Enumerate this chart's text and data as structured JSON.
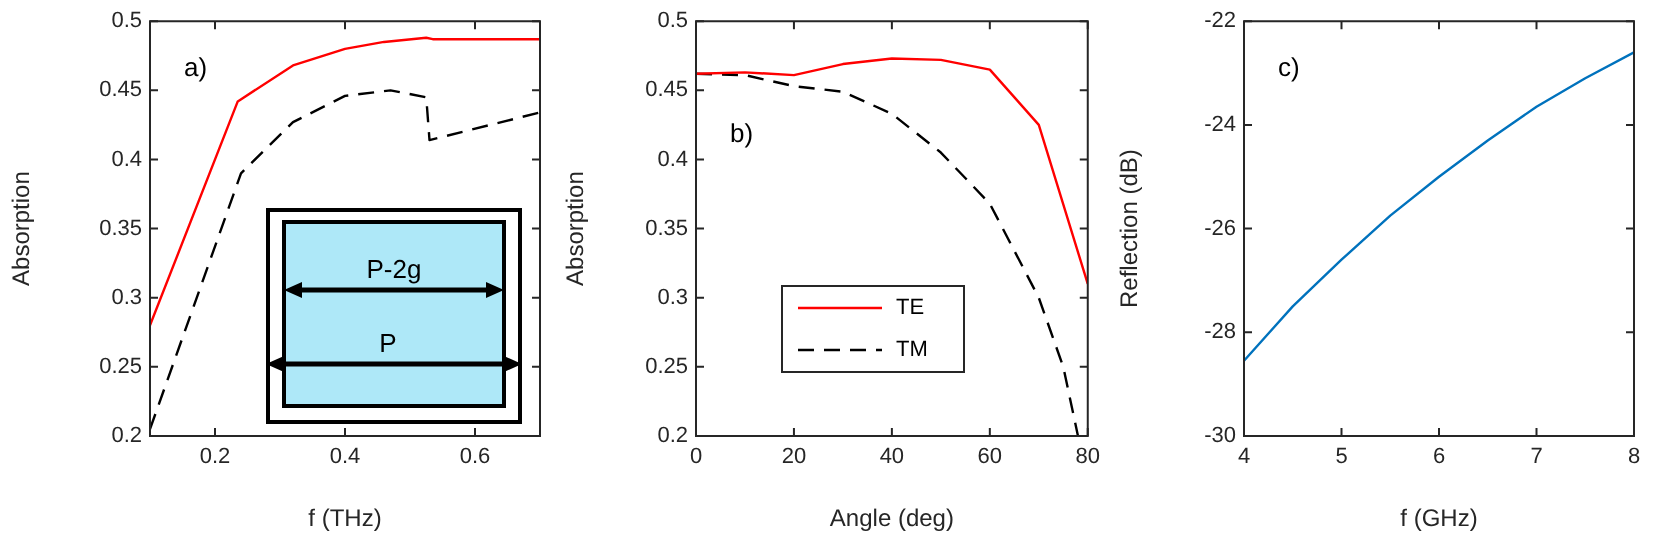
{
  "chart_data": [
    {
      "type": "line",
      "xlabel": "f (THz)",
      "ylabel": "Absorption",
      "annotations": [
        "a)",
        "P-2g",
        "P"
      ],
      "xlim": [
        0.1,
        0.7
      ],
      "xticks": [
        0.2,
        0.4,
        0.6
      ],
      "ylim": [
        0.2,
        0.5
      ],
      "yticks": [
        0.2,
        0.25,
        0.3,
        0.35,
        0.4,
        0.45,
        0.5
      ],
      "grid": false,
      "marker": "none",
      "series": [
        {
          "color": "#ff0000",
          "line_style": "solid",
          "x": [
            0.1,
            0.235,
            0.32,
            0.4,
            0.46,
            0.525,
            0.535,
            0.7
          ],
          "values": [
            0.28,
            0.442,
            0.468,
            0.48,
            0.485,
            0.488,
            0.487,
            0.487
          ]
        },
        {
          "color": "#000000",
          "line_style": "dashed",
          "x": [
            0.1,
            0.24,
            0.32,
            0.4,
            0.47,
            0.525,
            0.53,
            0.7
          ],
          "values": [
            0.205,
            0.39,
            0.427,
            0.446,
            0.45,
            0.445,
            0.414,
            0.434
          ]
        }
      ]
    },
    {
      "type": "line",
      "xlabel": "Angle (deg)",
      "ylabel": "Absorption",
      "annotations": [
        "b)"
      ],
      "xlim": [
        0,
        80
      ],
      "xticks": [
        0,
        20,
        40,
        60,
        80
      ],
      "ylim": [
        0.2,
        0.5
      ],
      "yticks": [
        0.2,
        0.25,
        0.3,
        0.35,
        0.4,
        0.45,
        0.5
      ],
      "grid": false,
      "marker": "none",
      "legend": "bottom left",
      "series": [
        {
          "name": "TE",
          "color": "#ff0000",
          "line_style": "solid",
          "x": [
            0,
            10,
            20,
            30,
            40,
            50,
            60,
            70,
            80
          ],
          "values": [
            0.462,
            0.463,
            0.461,
            0.469,
            0.473,
            0.472,
            0.465,
            0.425,
            0.31
          ]
        },
        {
          "name": "TM",
          "color": "#000000",
          "line_style": "dashed",
          "x": [
            0,
            10,
            20,
            30,
            40,
            50,
            60,
            70,
            75,
            78
          ],
          "values": [
            0.462,
            0.461,
            0.453,
            0.449,
            0.433,
            0.405,
            0.368,
            0.3,
            0.25,
            0.2
          ]
        }
      ]
    },
    {
      "type": "line",
      "xlabel": "f (GHz)",
      "ylabel": "Reflection (dB)",
      "annotations": [
        "c)"
      ],
      "xlim": [
        4,
        8
      ],
      "xticks": [
        4,
        5,
        6,
        7,
        8
      ],
      "ylim": [
        -30,
        -22
      ],
      "yticks": [
        -30,
        -28,
        -26,
        -24,
        -22
      ],
      "grid": false,
      "marker": "none",
      "series": [
        {
          "color": "#0072bd",
          "line_style": "solid",
          "x": [
            4,
            4.5,
            5,
            5.5,
            6,
            6.5,
            7,
            7.5,
            8
          ],
          "values": [
            -28.55,
            -27.5,
            -26.6,
            -25.75,
            -25.0,
            -24.3,
            -23.65,
            -23.1,
            -22.6
          ]
        }
      ]
    }
  ]
}
